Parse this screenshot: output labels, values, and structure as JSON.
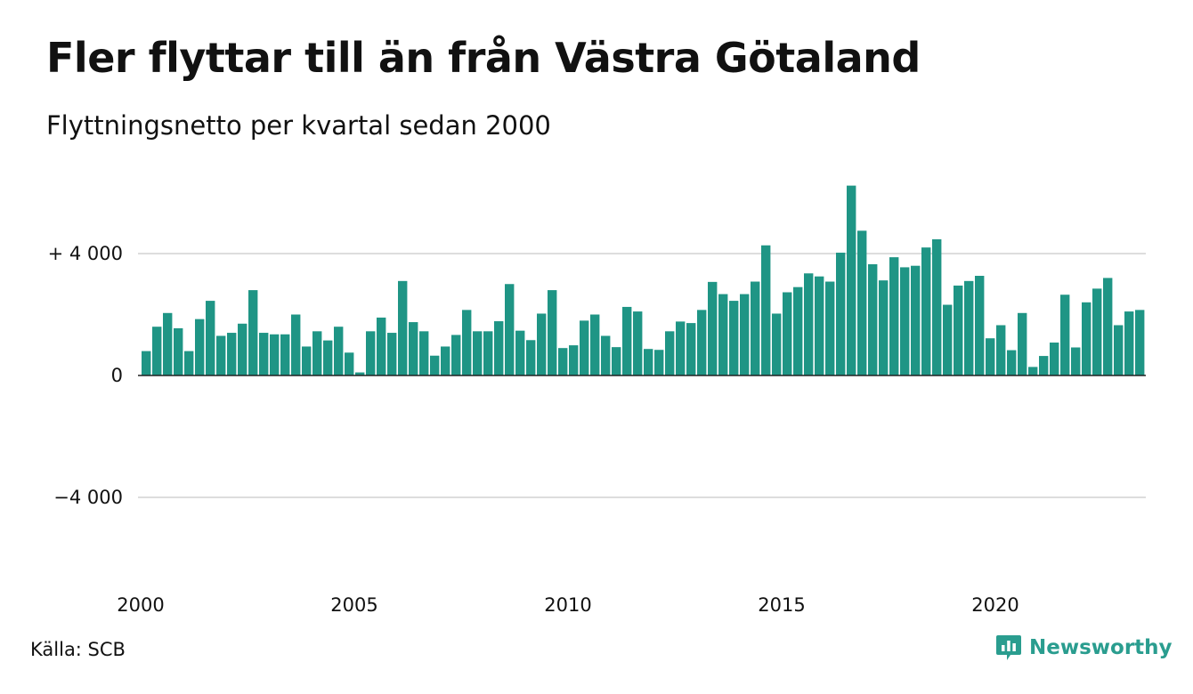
{
  "chart_data": {
    "type": "bar",
    "title": "Fler flyttar till än från Västra Götaland",
    "subtitle": "Flyttningsnetto per kvartal sedan 2000",
    "xlabel": "",
    "ylabel": "",
    "x_start_year": 2000,
    "ylim": [
      -6200,
      6200
    ],
    "y_ticks": [
      {
        "value": 4000,
        "label": "+ 4 000"
      },
      {
        "value": 0,
        "label": "0"
      },
      {
        "value": -4000,
        "label": "−4 000"
      }
    ],
    "x_ticks": [
      {
        "value": 2000,
        "label": "2000"
      },
      {
        "value": 2005,
        "label": "2005"
      },
      {
        "value": 2010,
        "label": "2010"
      },
      {
        "value": 2015,
        "label": "2015"
      },
      {
        "value": 2020,
        "label": "2020"
      }
    ],
    "grid": true,
    "bar_color": "#1f9585",
    "values": [
      800,
      1600,
      2050,
      1550,
      800,
      1850,
      2450,
      1300,
      1400,
      1700,
      2800,
      1400,
      1350,
      1350,
      2000,
      950,
      1450,
      1150,
      1600,
      750,
      100,
      1450,
      1900,
      1400,
      3100,
      1750,
      1450,
      650,
      950,
      1330,
      2150,
      1450,
      1450,
      1780,
      3000,
      1470,
      1160,
      2030,
      2800,
      900,
      990,
      1800,
      2000,
      1300,
      930,
      2250,
      2100,
      870,
      840,
      1450,
      1770,
      1720,
      2150,
      3070,
      2670,
      2450,
      2670,
      3080,
      4270,
      2030,
      2730,
      2900,
      3350,
      3250,
      3080,
      4030,
      6230,
      4750,
      3650,
      3120,
      3880,
      3550,
      3600,
      4200,
      4470,
      2320,
      2950,
      3100,
      3270,
      1220,
      1650,
      830,
      2050,
      280,
      640,
      1080,
      2650,
      920,
      2400,
      2850,
      3200,
      1650,
      2100,
      2150
    ]
  },
  "footer": {
    "source": "Källa: SCB",
    "brand": "Newsworthy",
    "brand_color": "#2a9d8f",
    "brand_icon": "bar-chart-speech-bubble-icon"
  }
}
